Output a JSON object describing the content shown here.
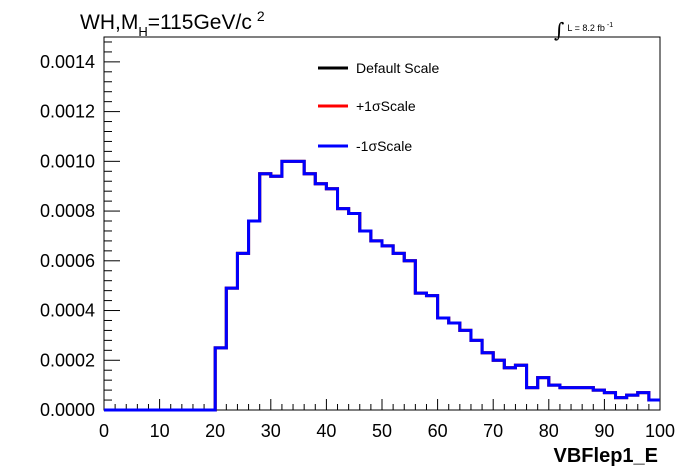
{
  "title": {
    "main": "WH,M",
    "subscript": "H",
    "rest": "=115GeV/c",
    "superscript": "2"
  },
  "lumi": {
    "integral": "∫",
    "text": "L = 8.2 fb",
    "superscript": "-1"
  },
  "chart_data": {
    "type": "line",
    "style": "step histogram",
    "title": "WH,M_H=115GeV/c^2",
    "xlabel": "VBFlep1_E",
    "ylabel": "",
    "xlim": [
      0,
      100
    ],
    "ylim": [
      0,
      0.0015
    ],
    "x_ticks": [
      "0",
      "10",
      "20",
      "30",
      "40",
      "50",
      "60",
      "70",
      "80",
      "90",
      "100"
    ],
    "y_ticks": [
      "0.0000",
      "0.0002",
      "0.0004",
      "0.0006",
      "0.0008",
      "0.0010",
      "0.0012",
      "0.0014"
    ],
    "bin_edges": [
      0,
      2,
      4,
      6,
      8,
      10,
      12,
      14,
      16,
      18,
      20,
      22,
      24,
      26,
      28,
      30,
      32,
      34,
      36,
      38,
      40,
      42,
      44,
      46,
      48,
      50,
      52,
      54,
      56,
      58,
      60,
      62,
      64,
      66,
      68,
      70,
      72,
      74,
      76,
      78,
      80,
      82,
      84,
      86,
      88,
      90,
      92,
      94,
      96,
      98,
      100
    ],
    "series": [
      {
        "name": "Default Scale",
        "color": "#000000",
        "values": [
          0,
          0,
          0,
          0,
          0,
          0,
          0,
          0,
          0,
          0,
          0.00025,
          0.00049,
          0.00063,
          0.00076,
          0.00095,
          0.00094,
          0.001,
          0.001,
          0.00095,
          0.00091,
          0.00089,
          0.00081,
          0.00079,
          0.00072,
          0.00068,
          0.00066,
          0.00063,
          0.0006,
          0.00047,
          0.00046,
          0.00037,
          0.00035,
          0.00032,
          0.00028,
          0.00023,
          0.0002,
          0.00017,
          0.00018,
          9e-05,
          0.00013,
          0.0001,
          9e-05,
          9e-05,
          9e-05,
          8e-05,
          7e-05,
          5e-05,
          6e-05,
          7e-05,
          4e-05
        ]
      },
      {
        "name": "+1σScale",
        "color": "#ff0000",
        "values": [
          0,
          0,
          0,
          0,
          0,
          0,
          0,
          0,
          0,
          0,
          0.00025,
          0.00049,
          0.00063,
          0.00076,
          0.00095,
          0.00094,
          0.001,
          0.001,
          0.00095,
          0.00091,
          0.00089,
          0.00081,
          0.00079,
          0.00072,
          0.00068,
          0.00066,
          0.00063,
          0.0006,
          0.00047,
          0.00046,
          0.00037,
          0.00035,
          0.00032,
          0.00028,
          0.00023,
          0.0002,
          0.00017,
          0.00018,
          9e-05,
          0.00013,
          0.0001,
          9e-05,
          9e-05,
          9e-05,
          8e-05,
          7e-05,
          5e-05,
          6e-05,
          7e-05,
          4e-05
        ]
      },
      {
        "name": "-1σScale",
        "color": "#0000ff",
        "values": [
          0,
          0,
          0,
          0,
          0,
          0,
          0,
          0,
          0,
          0,
          0.00025,
          0.00049,
          0.00063,
          0.00076,
          0.00095,
          0.00094,
          0.001,
          0.001,
          0.00095,
          0.00091,
          0.00089,
          0.00081,
          0.00079,
          0.00072,
          0.00068,
          0.00066,
          0.00063,
          0.0006,
          0.00047,
          0.00046,
          0.00037,
          0.00035,
          0.00032,
          0.00028,
          0.00023,
          0.0002,
          0.00017,
          0.00018,
          9e-05,
          0.00013,
          0.0001,
          9e-05,
          9e-05,
          9e-05,
          8e-05,
          7e-05,
          5e-05,
          6e-05,
          7e-05,
          4e-05
        ]
      }
    ],
    "legend_position": "top-center",
    "grid": false
  }
}
